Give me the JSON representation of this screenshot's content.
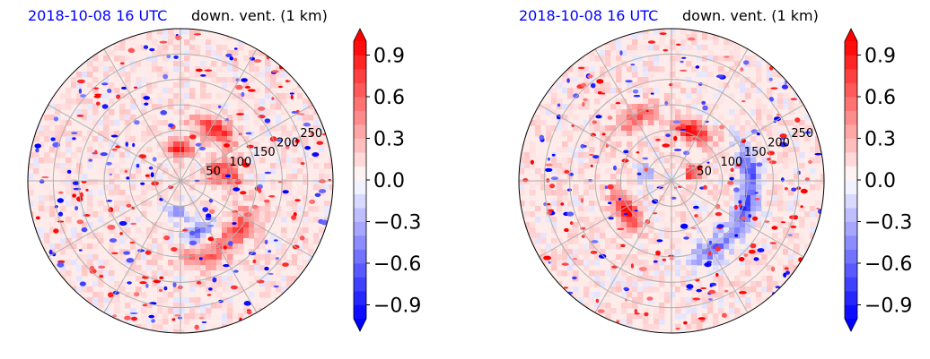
{
  "panels": [
    {
      "title_left": "2018-10-08 16 UTC",
      "title_right": "down. vent. (1 km)"
    },
    {
      "title_left": "2018-10-08 16 UTC",
      "title_right": "down. vent. (1 km)"
    }
  ],
  "colors": {
    "title_left": "#0000ff",
    "positive": "#ff0000",
    "negative": "#0000ff",
    "grid": "#b0b0b0"
  },
  "chart_data": [
    {
      "type": "heatmap",
      "projection": "polar",
      "title_left": "2018-10-08 16 UTC",
      "title_right": "down. vent. (1 km)",
      "radial_ticks": [
        "50",
        "100",
        "150",
        "200",
        "250"
      ],
      "radial_values": [
        50,
        100,
        150,
        200,
        250,
        300
      ],
      "angular_gridlines_deg": [
        0,
        30,
        60,
        90,
        120,
        150,
        180,
        210,
        240,
        270,
        300,
        330
      ],
      "colorbar": {
        "ticks": [
          "0.9",
          "0.6",
          "0.3",
          "0.0",
          "−0.3",
          "−0.6",
          "−0.9"
        ],
        "tick_values": [
          0.9,
          0.6,
          0.3,
          0.0,
          -0.3,
          -0.6,
          -0.9
        ],
        "range": [
          -1.0,
          1.0
        ],
        "extend": "both",
        "cmap": "bwr",
        "levels": 20
      },
      "grid": true
    },
    {
      "type": "heatmap",
      "projection": "polar",
      "title_left": "2018-10-08 16 UTC",
      "title_right": "down. vent. (1 km)",
      "radial_ticks": [
        "50",
        "100",
        "150",
        "200",
        "250"
      ],
      "radial_values": [
        50,
        100,
        150,
        200,
        250,
        300
      ],
      "angular_gridlines_deg": [
        0,
        30,
        60,
        90,
        120,
        150,
        180,
        210,
        240,
        270,
        300,
        330
      ],
      "colorbar": {
        "ticks": [
          "0.9",
          "0.6",
          "0.3",
          "0.0",
          "−0.3",
          "−0.6",
          "−0.9"
        ],
        "tick_values": [
          0.9,
          0.6,
          0.3,
          0.0,
          -0.3,
          -0.6,
          -0.9
        ],
        "range": [
          -1.0,
          1.0
        ],
        "extend": "both",
        "cmap": "bwr",
        "levels": 20
      },
      "grid": true
    }
  ]
}
